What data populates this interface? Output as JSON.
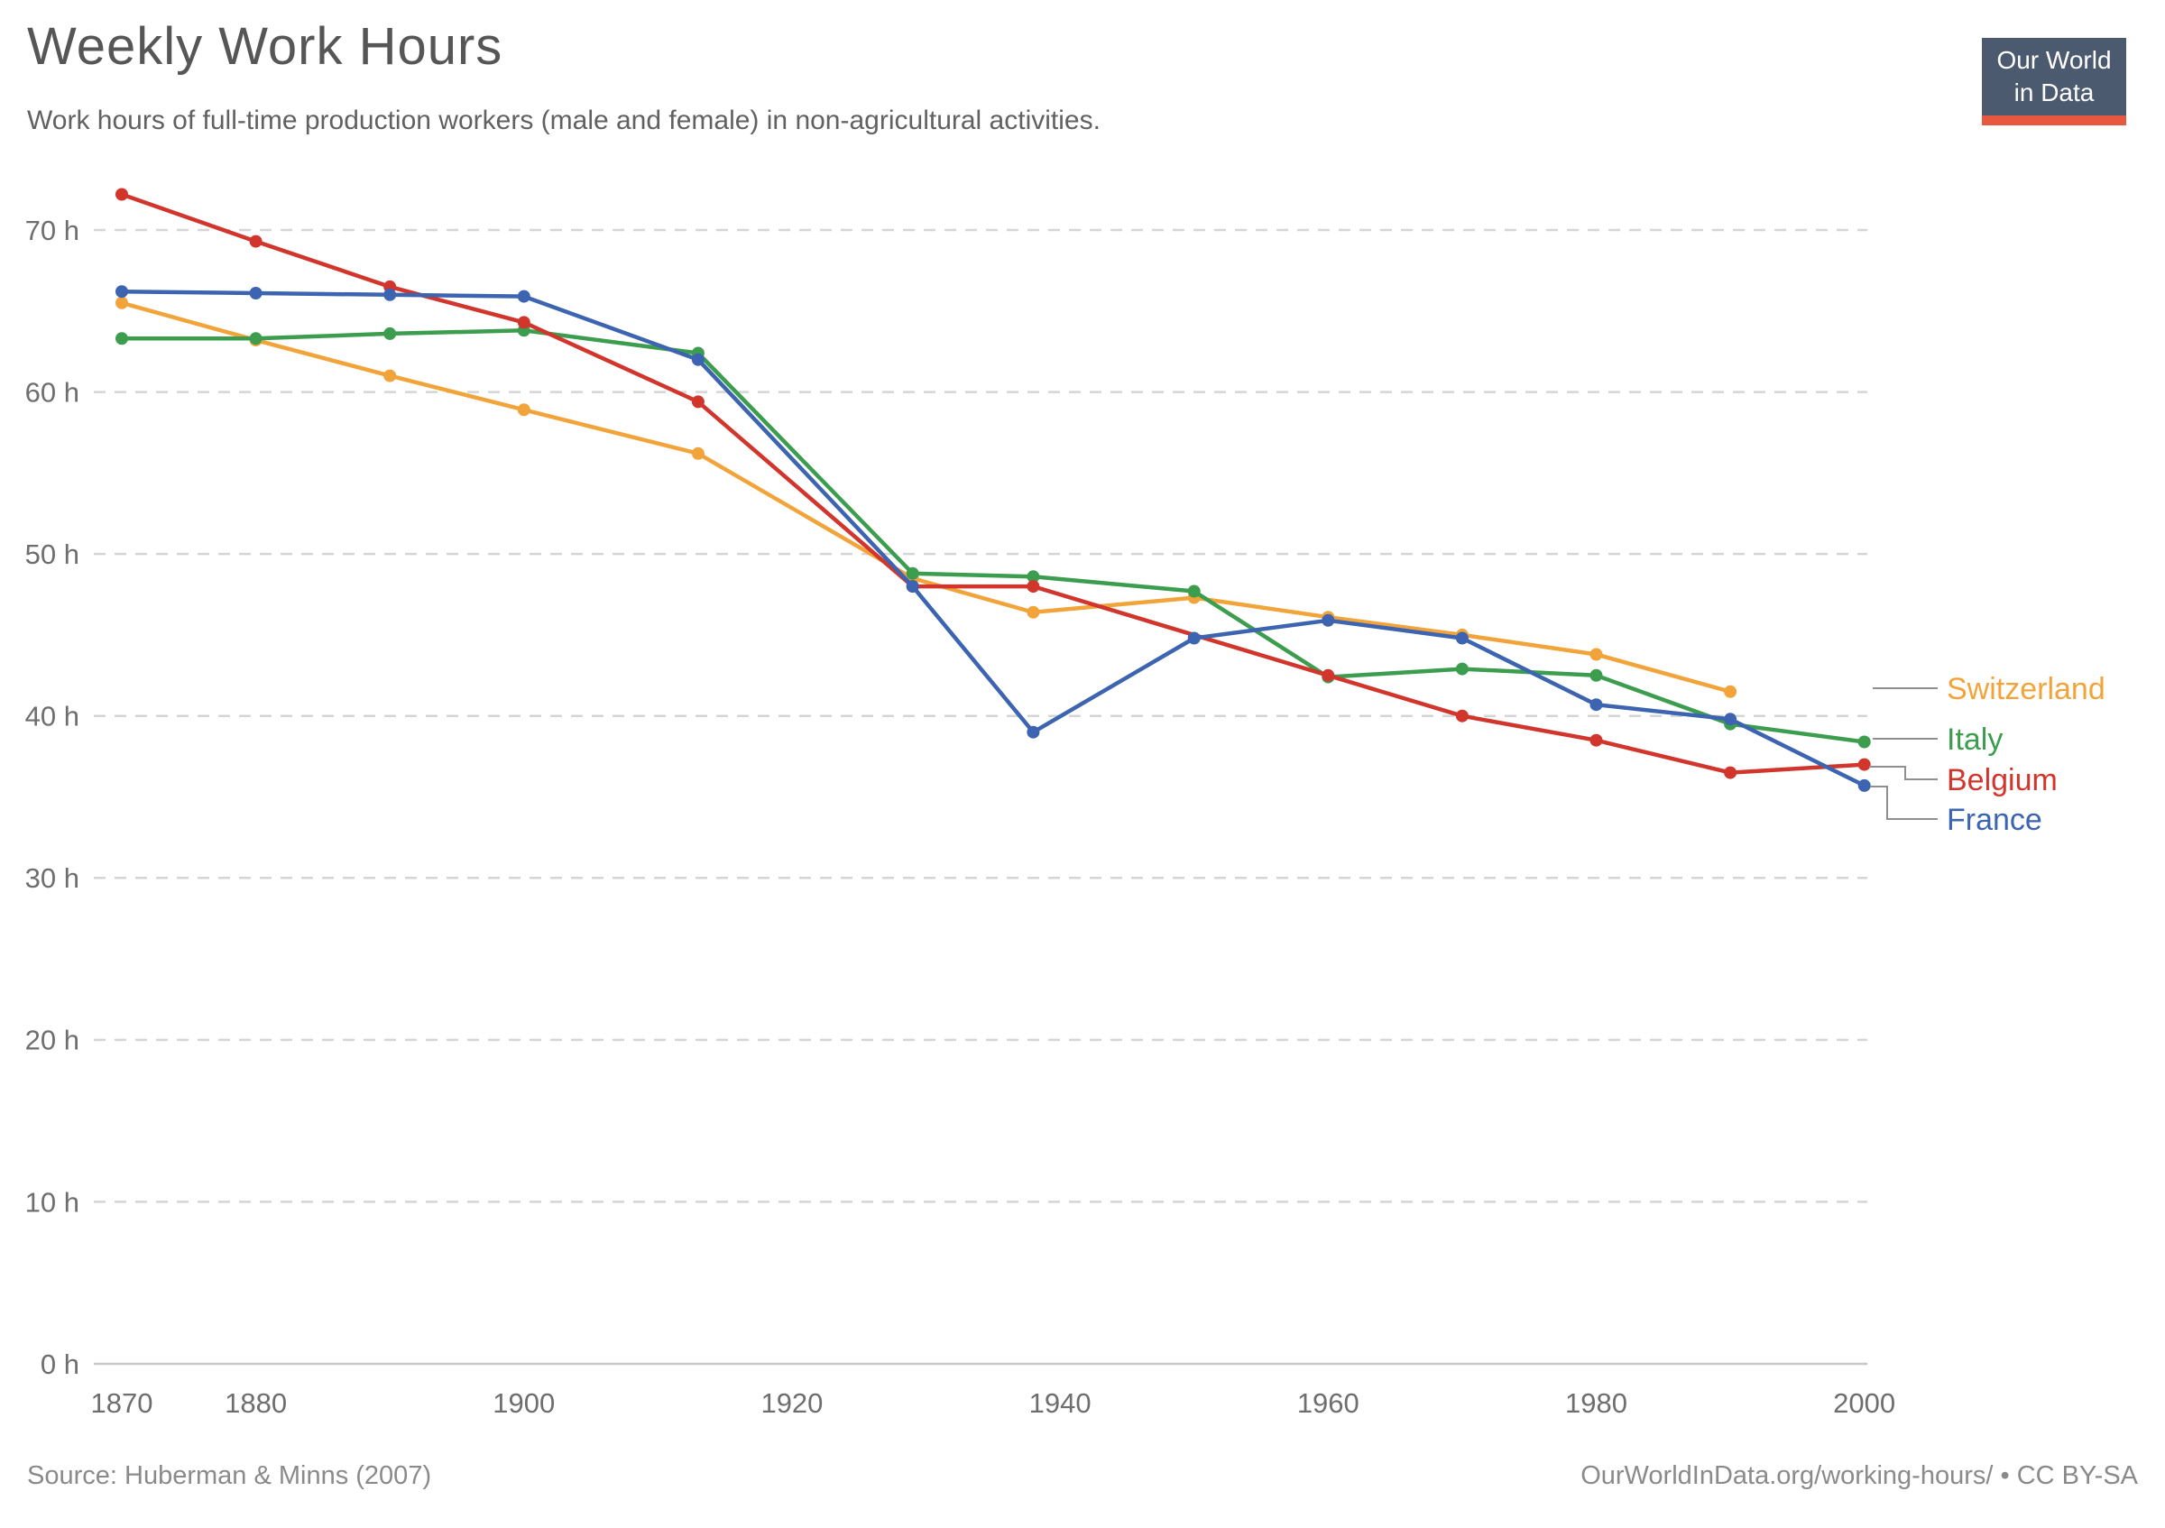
{
  "header": {
    "title": "Weekly Work Hours",
    "subtitle": "Work hours of full-time production workers (male and female) in non-agricultural activities."
  },
  "logo": {
    "line1": "Our World",
    "line2": "in Data",
    "bg_color": "#4c5a70",
    "bar_color": "#e8573f"
  },
  "footer": {
    "source": "Source: Huberman & Minns (2007)",
    "attribution": "OurWorldInData.org/working-hours/ • CC BY-SA"
  },
  "chart_data": {
    "type": "line",
    "title": "Weekly Work Hours",
    "xlabel": "",
    "ylabel": "",
    "x": [
      1870,
      1880,
      1890,
      1900,
      1913,
      1929,
      1938,
      1950,
      1960,
      1970,
      1980,
      1990,
      2000
    ],
    "series": [
      {
        "name": "Switzerland",
        "color": "#f2a43b",
        "values": [
          65.5,
          63.2,
          61.0,
          58.9,
          56.2,
          48.5,
          46.4,
          47.3,
          46.1,
          45.0,
          43.8,
          41.5,
          null
        ]
      },
      {
        "name": "Italy",
        "color": "#3c9d4e",
        "values": [
          63.3,
          63.3,
          63.6,
          63.8,
          62.4,
          48.8,
          48.6,
          47.7,
          42.4,
          42.9,
          42.5,
          39.5,
          38.4
        ]
      },
      {
        "name": "Belgium",
        "color": "#d1352c",
        "values": [
          72.2,
          69.3,
          66.5,
          64.3,
          59.4,
          48.0,
          48.0,
          null,
          42.5,
          40.0,
          38.5,
          36.5,
          37.0
        ]
      },
      {
        "name": "France",
        "color": "#3c64b1",
        "values": [
          66.2,
          66.1,
          66.0,
          65.9,
          62.0,
          48.0,
          39.0,
          44.8,
          45.9,
          44.8,
          40.7,
          39.8,
          35.7
        ]
      }
    ],
    "ylim": [
      0,
      73
    ],
    "yticks": [
      0,
      10,
      20,
      30,
      40,
      50,
      60,
      70
    ],
    "ytick_suffix": " h",
    "xticks": [
      1870,
      1880,
      1900,
      1920,
      1940,
      1960,
      1980,
      2000
    ],
    "grid": "horizontal-dashed",
    "legend_position": "right",
    "marker": "dot"
  }
}
